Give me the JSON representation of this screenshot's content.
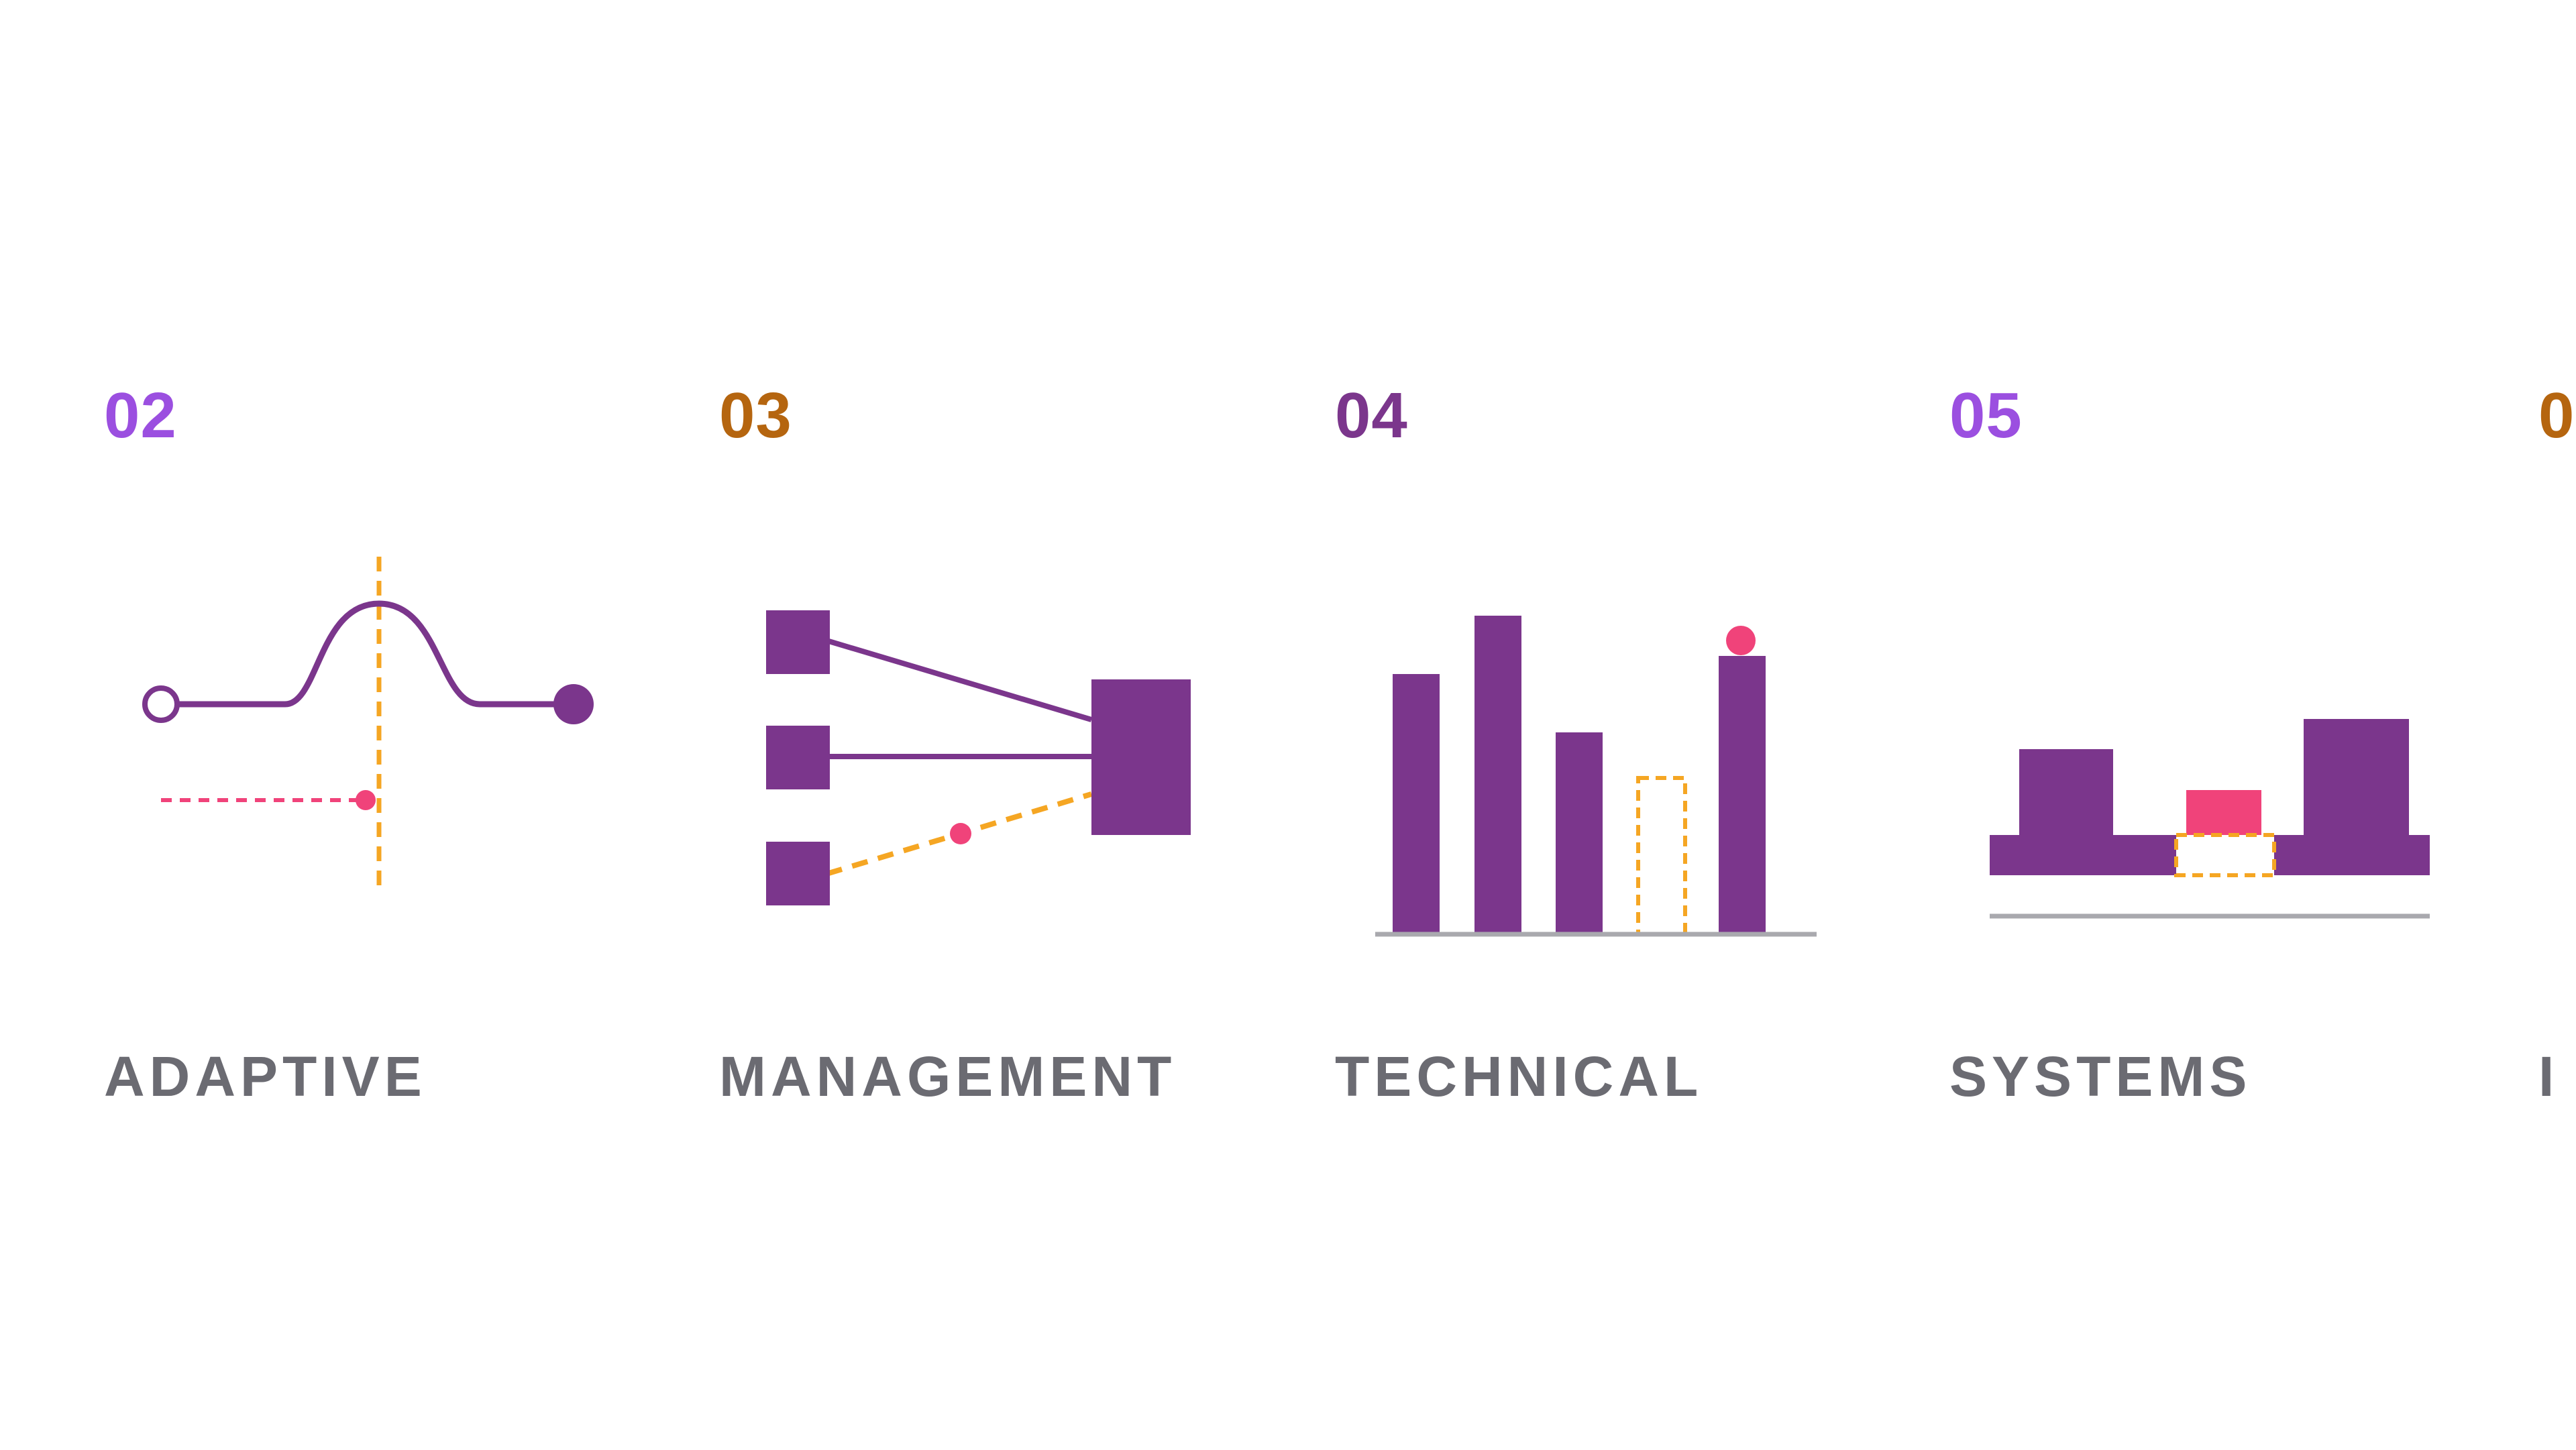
{
  "colors": {
    "primary_purple": "#7b368c",
    "light_purple": "#9b4fe0",
    "orange": "#b5650f",
    "dark_purple": "#7b368c",
    "dashed_orange": "#f5a623",
    "pink": "#f0437a",
    "gray_line": "#a9a9ae",
    "label_gray": "#6b6b72"
  },
  "cards": [
    {
      "number": "02",
      "label": "ADAPTIVE",
      "number_color": "#9b4fe0",
      "icon": "curve-peak-icon"
    },
    {
      "number": "03",
      "label": "MANAGEMENT",
      "number_color": "#b5650f",
      "icon": "hub-connections-icon"
    },
    {
      "number": "04",
      "label": "TECHNICAL",
      "number_color": "#7b368c",
      "icon": "bar-chart-icon"
    },
    {
      "number": "05",
      "label": "SYSTEMS",
      "number_color": "#9b4fe0",
      "icon": "blocks-platform-icon"
    },
    {
      "number": "0",
      "label": "I",
      "number_color": "#b5650f",
      "icon": ""
    }
  ]
}
